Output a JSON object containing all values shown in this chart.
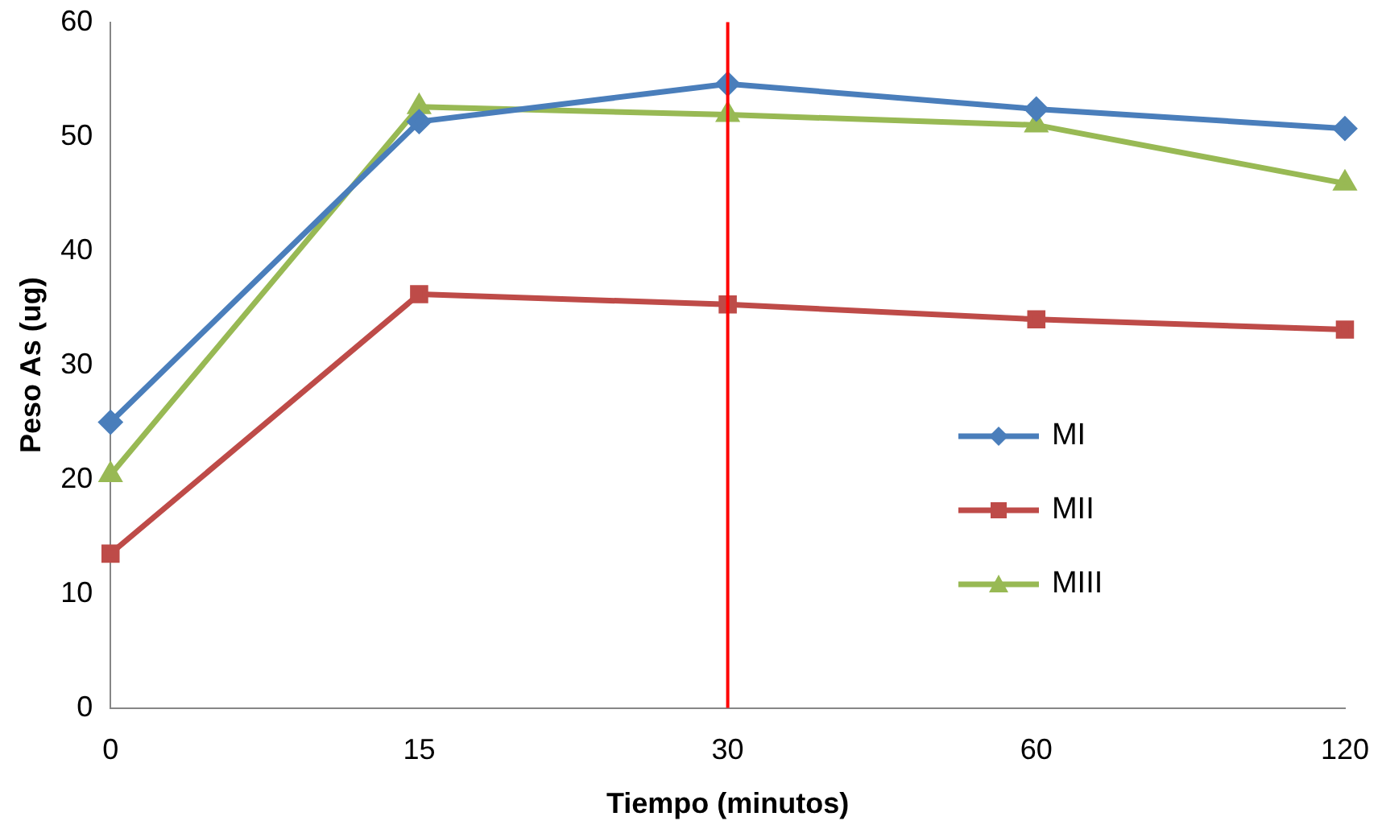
{
  "chart_data": {
    "type": "line",
    "xlabel": "Tiempo (minutos)",
    "ylabel": "Peso As (ug)",
    "categories": [
      "0",
      "15",
      "30",
      "60",
      "120"
    ],
    "series": [
      {
        "name": "MI",
        "color": "#4a7ebb",
        "marker": "diamond",
        "values": [
          25.0,
          51.3,
          54.6,
          52.4,
          50.7
        ]
      },
      {
        "name": "MII",
        "color": "#be4b48",
        "marker": "square",
        "values": [
          13.5,
          36.2,
          35.3,
          34.0,
          33.1
        ]
      },
      {
        "name": "MIII",
        "color": "#98b954",
        "marker": "triangle",
        "values": [
          20.4,
          52.6,
          51.9,
          51.0,
          45.9
        ]
      }
    ],
    "ylim": [
      0,
      60
    ],
    "yticks": [
      0,
      10,
      20,
      30,
      40,
      50,
      60
    ],
    "grid": false,
    "legend": "center right",
    "ref_lines": [
      {
        "axis": "x",
        "value": "30",
        "color": "#ff0000"
      }
    ]
  }
}
